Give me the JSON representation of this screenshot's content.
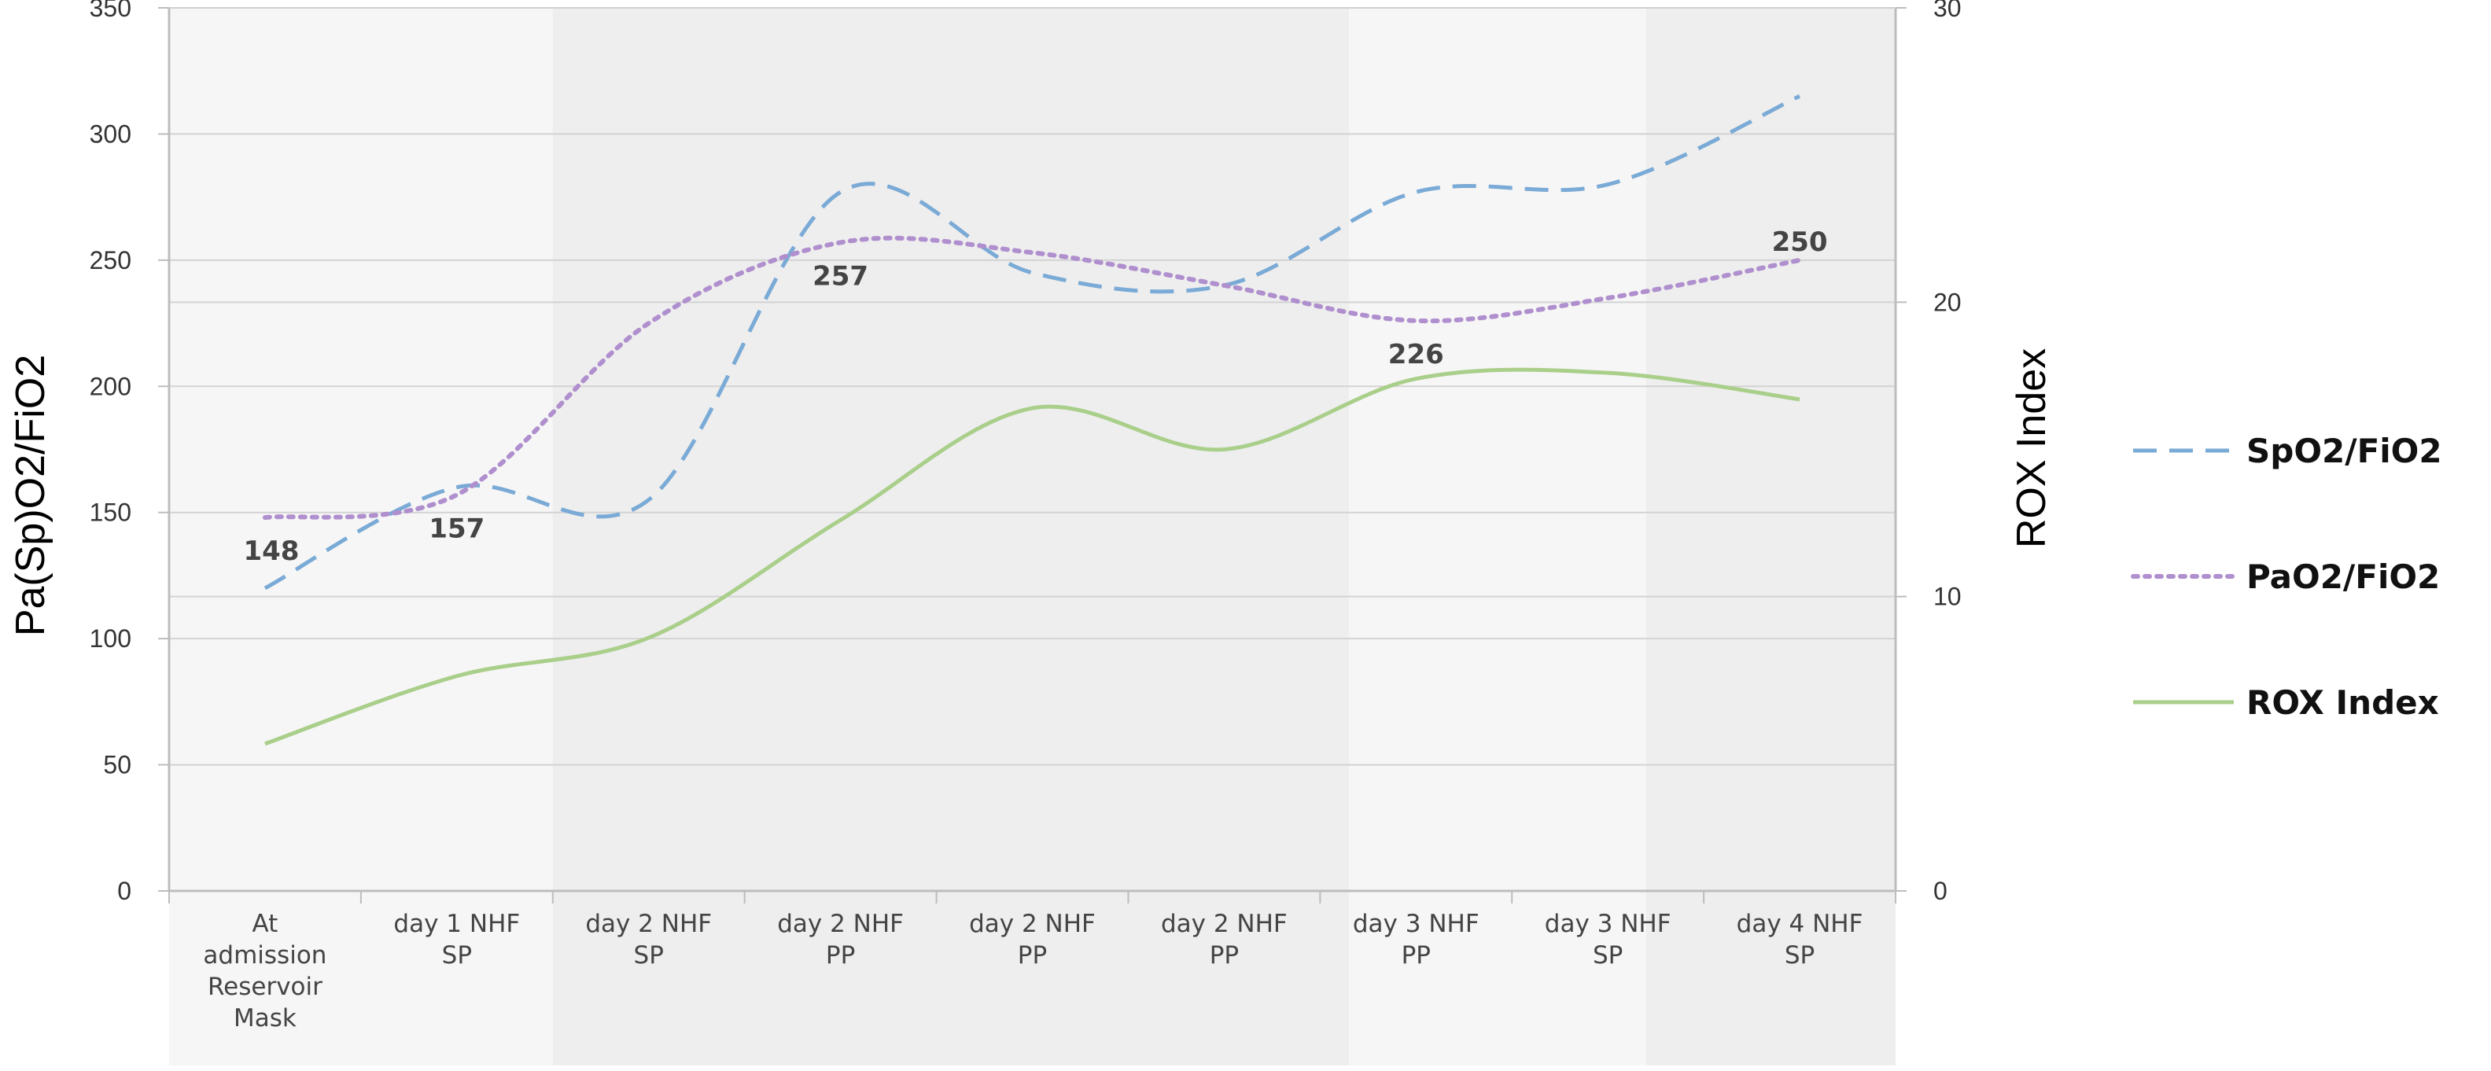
{
  "chart_data": {
    "type": "line",
    "categories": [
      [
        "At",
        "admission",
        "Reservoir",
        "Mask"
      ],
      [
        "day 1 NHF",
        "SP"
      ],
      [
        "day 2 NHF",
        "SP"
      ],
      [
        "day 2 NHF",
        "PP"
      ],
      [
        "day 2 NHF",
        "PP"
      ],
      [
        "day 2 NHF",
        "PP"
      ],
      [
        "day 3 NHF",
        "PP"
      ],
      [
        "day 3 NHF",
        "SP"
      ],
      [
        "day 4 NHF",
        "SP"
      ]
    ],
    "ylabel": "Pa(Sp)O2/FiO2",
    "y2label": "ROX Index",
    "ylim": [
      0,
      350
    ],
    "y2lim": [
      0,
      30
    ],
    "yticks": [
      "0",
      "50",
      "100",
      "150",
      "200",
      "250",
      "300",
      "350"
    ],
    "y2ticks": [
      "0",
      "10",
      "20",
      "30"
    ],
    "grid": true,
    "legend_position": "right",
    "series": [
      {
        "name": "SpO2/FiO2",
        "axis": "left",
        "style": "dashed",
        "color": "#7aaad6",
        "values": [
          120,
          160,
          155,
          277,
          245,
          240,
          277,
          280,
          315
        ]
      },
      {
        "name": "PaO2/FiO2",
        "axis": "left",
        "style": "dotted",
        "color": "#b08fce",
        "values": [
          148,
          157,
          225,
          257,
          253,
          240,
          226,
          235,
          250
        ],
        "data_labels": [
          "148",
          "157",
          "",
          "257",
          "",
          "",
          "226",
          "",
          "250"
        ]
      },
      {
        "name": "ROX Index",
        "axis": "right",
        "style": "solid",
        "color": "#a9cf8a",
        "values": [
          5.0,
          7.3,
          8.6,
          12.6,
          16.4,
          15.0,
          17.4,
          17.6,
          16.7
        ]
      }
    ]
  }
}
